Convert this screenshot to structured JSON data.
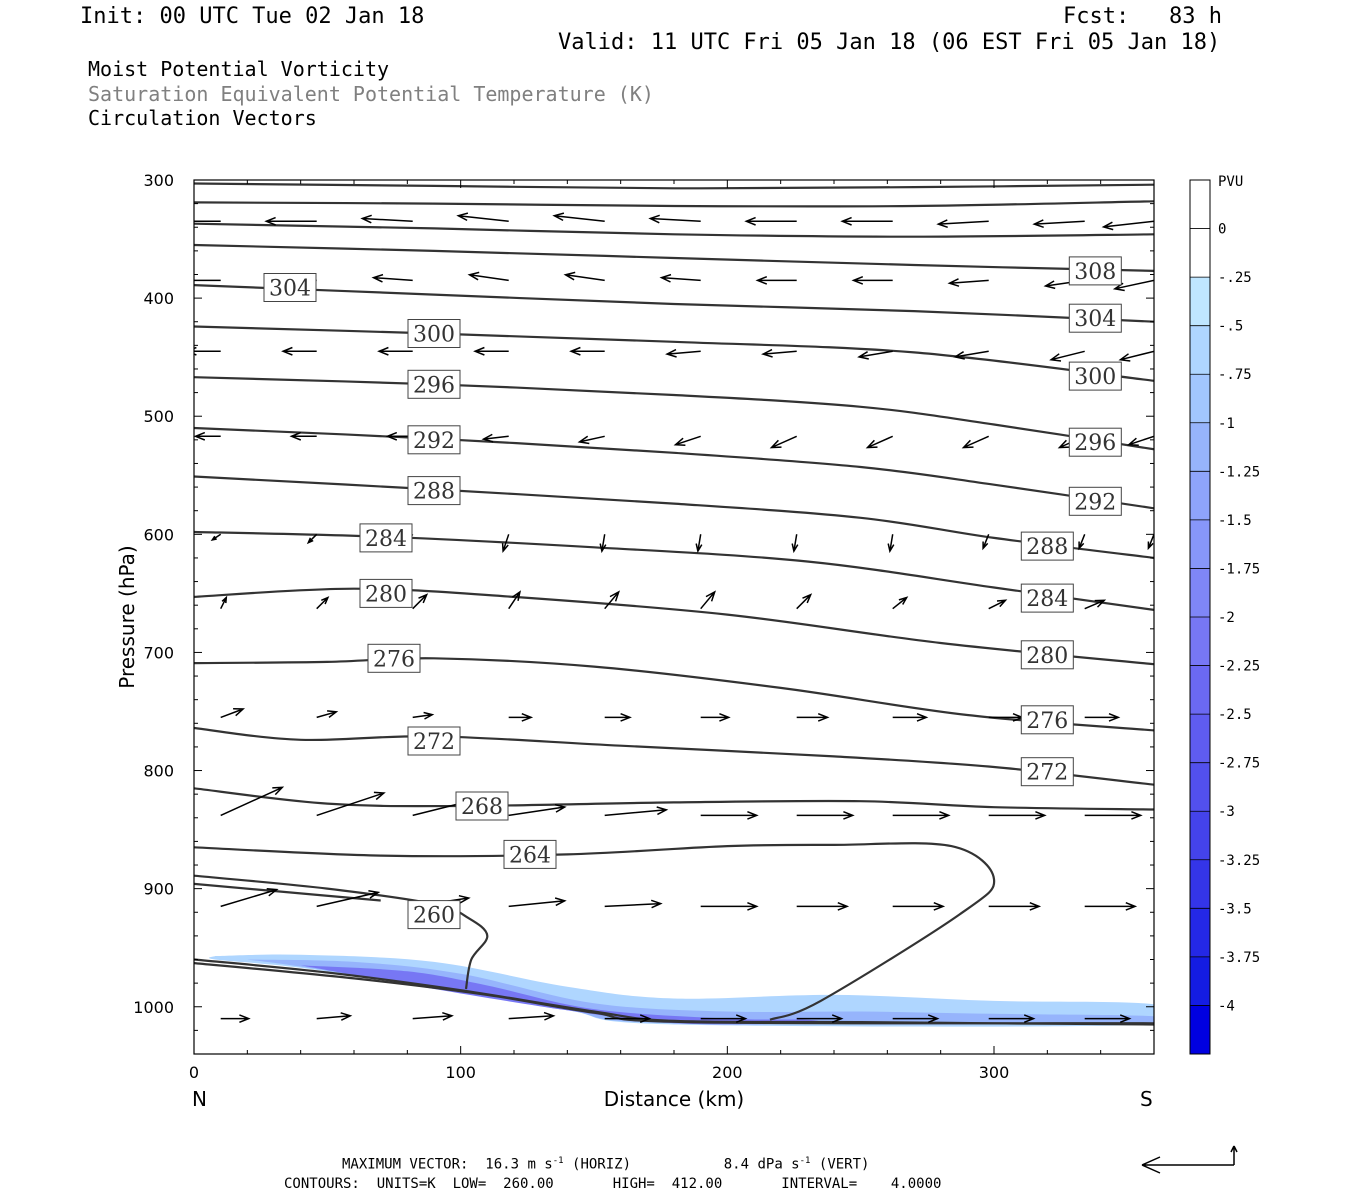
{
  "header": {
    "init": "Init: 00 UTC Tue 02 Jan 18",
    "fcst": "Fcst:   83 h",
    "valid": "Valid: 11 UTC Fri 05 Jan 18 (06 EST Fri 05 Jan 18)",
    "fields": [
      "Moist Potential Vorticity",
      "Saturation Equivalent Potential Temperature (K)",
      "Circulation Vectors"
    ]
  },
  "footer": {
    "vector_label": "MAXIMUM VECTOR:",
    "horiz_value": "16.3 m s",
    "horiz_exp": "-1",
    "horiz_tag": "(HORIZ)",
    "vert_value": "8.4 dPa s",
    "vert_exp": "-1",
    "vert_tag": "(VERT)",
    "contours_line": "CONTOURS:  UNITS=K  LOW=  260.00       HIGH=  412.00       INTERVAL=    4.0000"
  },
  "chart_data": {
    "type": "cross-section",
    "xlabel": "Distance (km)",
    "ylabel": "Pressure (hPa)",
    "xlim": [
      0,
      360
    ],
    "ylim": [
      300,
      1040
    ],
    "x_ticks": [
      0,
      100,
      200,
      300
    ],
    "y_ticks": [
      300,
      400,
      500,
      600,
      700,
      800,
      900,
      1000
    ],
    "x_end_labels": {
      "left": "N",
      "right": "S"
    },
    "colorbar": {
      "unit": "PVU",
      "labels": [
        "0",
        "-.25",
        "-.5",
        "-.75",
        "-1",
        "-1.25",
        "-1.5",
        "-1.75",
        "-2",
        "-2.25",
        "-2.5",
        "-2.75",
        "-3",
        "-3.25",
        "-3.5",
        "-3.75",
        "-4"
      ],
      "colors": [
        "#ffffff",
        "#ffffff",
        "#bfe6ff",
        "#afd6ff",
        "#a2c6fe",
        "#96b4fc",
        "#8ea4fb",
        "#8796f9",
        "#7f86f7",
        "#7777f4",
        "#6b69f2",
        "#5f5cf0",
        "#5250ee",
        "#4443eb",
        "#3435e8",
        "#2428e6",
        "#141ce3",
        "#0000e0"
      ]
    },
    "contours": [
      {
        "label": "308",
        "label_at": [
          [
            338,
            377
          ]
        ],
        "points": [
          [
            0,
            355
          ],
          [
            90,
            360
          ],
          [
            180,
            366
          ],
          [
            270,
            372
          ],
          [
            360,
            377
          ]
        ]
      },
      {
        "label": "304",
        "label_at": [
          [
            36,
            391
          ],
          [
            338,
            417
          ]
        ],
        "points": [
          [
            0,
            389
          ],
          [
            90,
            397
          ],
          [
            180,
            405
          ],
          [
            270,
            411
          ],
          [
            360,
            420
          ]
        ]
      },
      {
        "label": "300",
        "label_at": [
          [
            90,
            430
          ],
          [
            338,
            466
          ]
        ],
        "points": [
          [
            0,
            424
          ],
          [
            90,
            430
          ],
          [
            180,
            437
          ],
          [
            270,
            446
          ],
          [
            360,
            470
          ]
        ]
      },
      {
        "label": "296",
        "label_at": [
          [
            90,
            473
          ],
          [
            338,
            522
          ]
        ],
        "points": [
          [
            0,
            467
          ],
          [
            90,
            473
          ],
          [
            180,
            482
          ],
          [
            250,
            492
          ],
          [
            300,
            507
          ],
          [
            360,
            528
          ]
        ]
      },
      {
        "label": "292",
        "label_at": [
          [
            90,
            520
          ],
          [
            338,
            572
          ]
        ],
        "points": [
          [
            0,
            510
          ],
          [
            90,
            519
          ],
          [
            180,
            531
          ],
          [
            250,
            543
          ],
          [
            300,
            558
          ],
          [
            360,
            578
          ]
        ]
      },
      {
        "label": "288",
        "label_at": [
          [
            90,
            563
          ],
          [
            320,
            610
          ]
        ],
        "points": [
          [
            0,
            551
          ],
          [
            90,
            562
          ],
          [
            180,
            574
          ],
          [
            250,
            586
          ],
          [
            300,
            603
          ],
          [
            360,
            620
          ]
        ]
      },
      {
        "label": "284",
        "label_at": [
          [
            72,
            603
          ],
          [
            320,
            654
          ]
        ],
        "points": [
          [
            0,
            598
          ],
          [
            70,
            602
          ],
          [
            150,
            611
          ],
          [
            230,
            623
          ],
          [
            300,
            645
          ],
          [
            360,
            664
          ]
        ]
      },
      {
        "label": "280",
        "label_at": [
          [
            72,
            650
          ],
          [
            320,
            702
          ]
        ],
        "points": [
          [
            0,
            653
          ],
          [
            60,
            646
          ],
          [
            120,
            653
          ],
          [
            200,
            668
          ],
          [
            280,
            692
          ],
          [
            360,
            710
          ]
        ]
      },
      {
        "label": "276",
        "label_at": [
          [
            75,
            705
          ],
          [
            320,
            757
          ]
        ],
        "points": [
          [
            0,
            709
          ],
          [
            50,
            708
          ],
          [
            90,
            705
          ],
          [
            150,
            712
          ],
          [
            220,
            730
          ],
          [
            290,
            753
          ],
          [
            360,
            766
          ]
        ]
      },
      {
        "label": "272",
        "label_at": [
          [
            90,
            775
          ],
          [
            320,
            801
          ]
        ],
        "points": [
          [
            0,
            764
          ],
          [
            40,
            774
          ],
          [
            90,
            771
          ],
          [
            160,
            779
          ],
          [
            240,
            788
          ],
          [
            300,
            797
          ],
          [
            360,
            812
          ]
        ]
      },
      {
        "label": "268",
        "label_at": [
          [
            108,
            830
          ]
        ],
        "points": [
          [
            0,
            815
          ],
          [
            50,
            828
          ],
          [
            100,
            830
          ],
          [
            180,
            827
          ],
          [
            250,
            826
          ],
          [
            300,
            831
          ],
          [
            360,
            833
          ]
        ]
      },
      {
        "label": "264",
        "label_at": [
          [
            126,
            871
          ]
        ],
        "points": [
          [
            0,
            865
          ],
          [
            70,
            872
          ],
          [
            140,
            871
          ],
          [
            200,
            864
          ],
          [
            240,
            863
          ],
          [
            284,
            864
          ],
          [
            300,
            892
          ],
          [
            287,
            922
          ],
          [
            235,
            995
          ],
          [
            216,
            1011
          ]
        ]
      },
      {
        "label": "260",
        "label_at": [
          [
            90,
            922
          ]
        ],
        "points": [
          [
            0,
            889
          ],
          [
            50,
            900
          ],
          [
            90,
            913
          ],
          [
            103,
            925
          ],
          [
            110,
            940
          ],
          [
            104,
            960
          ],
          [
            102,
            985
          ]
        ]
      },
      {
        "label": "",
        "label_at": [],
        "points": [
          [
            0,
            896
          ],
          [
            30,
            902
          ],
          [
            70,
            910
          ]
        ]
      },
      {
        "label": "",
        "label_at": [],
        "points": [
          [
            0,
            960
          ],
          [
            50,
            971
          ],
          [
            100,
            986
          ],
          [
            150,
            1004
          ],
          [
            180,
            1012
          ],
          [
            250,
            1013
          ],
          [
            300,
            1014
          ],
          [
            360,
            1015
          ]
        ]
      },
      {
        "label": "",
        "label_at": [],
        "points": [
          [
            0,
            963
          ],
          [
            60,
            976
          ],
          [
            110,
            990
          ],
          [
            150,
            1005
          ],
          [
            185,
            1013
          ],
          [
            360,
            1014
          ]
        ]
      },
      {
        "label": "",
        "label_at": [],
        "points": [
          [
            0,
            303
          ],
          [
            90,
            305
          ],
          [
            180,
            307
          ],
          [
            270,
            306
          ],
          [
            360,
            304
          ]
        ]
      },
      {
        "label": "",
        "label_at": [],
        "points": [
          [
            0,
            319
          ],
          [
            90,
            320
          ],
          [
            180,
            322
          ],
          [
            270,
            322
          ],
          [
            360,
            318
          ]
        ]
      },
      {
        "label": "",
        "label_at": [],
        "points": [
          [
            0,
            337
          ],
          [
            90,
            341
          ],
          [
            180,
            346
          ],
          [
            270,
            348
          ],
          [
            360,
            346
          ]
        ]
      }
    ],
    "pv_shading": [
      {
        "value": -0.5,
        "points": [
          [
            8,
            957
          ],
          [
            40,
            956
          ],
          [
            90,
            962
          ],
          [
            140,
            983
          ],
          [
            180,
            993
          ],
          [
            240,
            990
          ],
          [
            300,
            995
          ],
          [
            360,
            998
          ],
          [
            360,
            1015
          ],
          [
            180,
            1015
          ],
          [
            140,
            1003
          ],
          [
            90,
            984
          ],
          [
            40,
            967
          ],
          [
            8,
            960
          ]
        ]
      },
      {
        "value": -1.0,
        "points": [
          [
            20,
            960
          ],
          [
            60,
            962
          ],
          [
            100,
            972
          ],
          [
            150,
            997
          ],
          [
            200,
            1004
          ],
          [
            250,
            1004
          ],
          [
            300,
            1006
          ],
          [
            360,
            1008
          ],
          [
            360,
            1014
          ],
          [
            180,
            1014
          ],
          [
            140,
            1003
          ],
          [
            90,
            984
          ],
          [
            40,
            966
          ]
        ]
      },
      {
        "value": -2.0,
        "points": [
          [
            40,
            965
          ],
          [
            80,
            970
          ],
          [
            110,
            982
          ],
          [
            150,
            1002
          ],
          [
            200,
            1010
          ],
          [
            230,
            1011
          ],
          [
            230,
            1014
          ],
          [
            180,
            1014
          ],
          [
            140,
            1003
          ],
          [
            90,
            985
          ],
          [
            50,
            969
          ]
        ]
      }
    ],
    "vectors": {
      "x": [
        10,
        46,
        82,
        118,
        154,
        190,
        226,
        262,
        298,
        334,
        360
      ],
      "rows": [
        {
          "p": 335,
          "u": [
            -18,
            -18,
            -18,
            -18,
            -18,
            -18,
            -18,
            -18,
            -18,
            -18,
            -18
          ],
          "w": [
            0,
            0,
            -1,
            -2,
            -2,
            -1,
            0,
            0,
            1,
            1,
            2
          ]
        },
        {
          "p": 385,
          "u": [
            -14,
            -14,
            -14,
            -14,
            -14,
            -14,
            -14,
            -14,
            -14,
            -14,
            -14
          ],
          "w": [
            0,
            0,
            -1,
            -2,
            -2,
            -1,
            0,
            0,
            1,
            2,
            3
          ]
        },
        {
          "p": 445,
          "u": [
            -12,
            -12,
            -12,
            -12,
            -12,
            -12,
            -12,
            -12,
            -12,
            -12,
            -12
          ],
          "w": [
            0,
            0,
            0,
            0,
            0,
            1,
            1,
            2,
            2,
            3,
            3
          ]
        },
        {
          "p": 517,
          "u": [
            -9,
            -9,
            -9,
            -9,
            -9,
            -9,
            -9,
            -9,
            -9,
            -9,
            -9
          ],
          "w": [
            0,
            0,
            0,
            1,
            2,
            3,
            4,
            4,
            4,
            4,
            3
          ]
        },
        {
          "p": 600,
          "u": [
            -3,
            -3,
            -3,
            -2,
            -1,
            -1,
            -1,
            -1,
            -2,
            -2,
            -2
          ],
          "w": [
            2,
            3,
            4,
            6,
            6,
            6,
            6,
            6,
            5,
            5,
            5
          ]
        },
        {
          "p": 663,
          "u": [
            2,
            4,
            5,
            4,
            5,
            5,
            5,
            5,
            6,
            7,
            7
          ],
          "w": [
            -4,
            -4,
            -5,
            -6,
            -6,
            -6,
            -5,
            -4,
            -3,
            -3,
            -3
          ]
        },
        {
          "p": 755,
          "u": [
            8,
            7,
            7,
            8,
            9,
            10,
            11,
            12,
            12,
            12,
            12
          ],
          "w": [
            -3,
            -2,
            -1,
            0,
            0,
            0,
            0,
            0,
            0,
            0,
            0
          ]
        },
        {
          "p": 838,
          "u": [
            22,
            24,
            20,
            20,
            22,
            20,
            20,
            20,
            20,
            20,
            20
          ],
          "w": [
            -10,
            -8,
            -5,
            -3,
            -2,
            0,
            0,
            0,
            0,
            0,
            0
          ]
        },
        {
          "p": 915,
          "u": [
            20,
            22,
            20,
            20,
            20,
            20,
            18,
            18,
            18,
            18,
            18
          ],
          "w": [
            -6,
            -5,
            -3,
            -2,
            -1,
            0,
            0,
            0,
            0,
            0,
            0
          ]
        },
        {
          "p": 1010,
          "u": [
            10,
            12,
            14,
            16,
            16,
            16,
            16,
            16,
            16,
            16,
            16
          ],
          "w": [
            0,
            -1,
            -1,
            -1,
            0,
            0,
            0,
            0,
            0,
            0,
            0
          ]
        }
      ]
    }
  }
}
